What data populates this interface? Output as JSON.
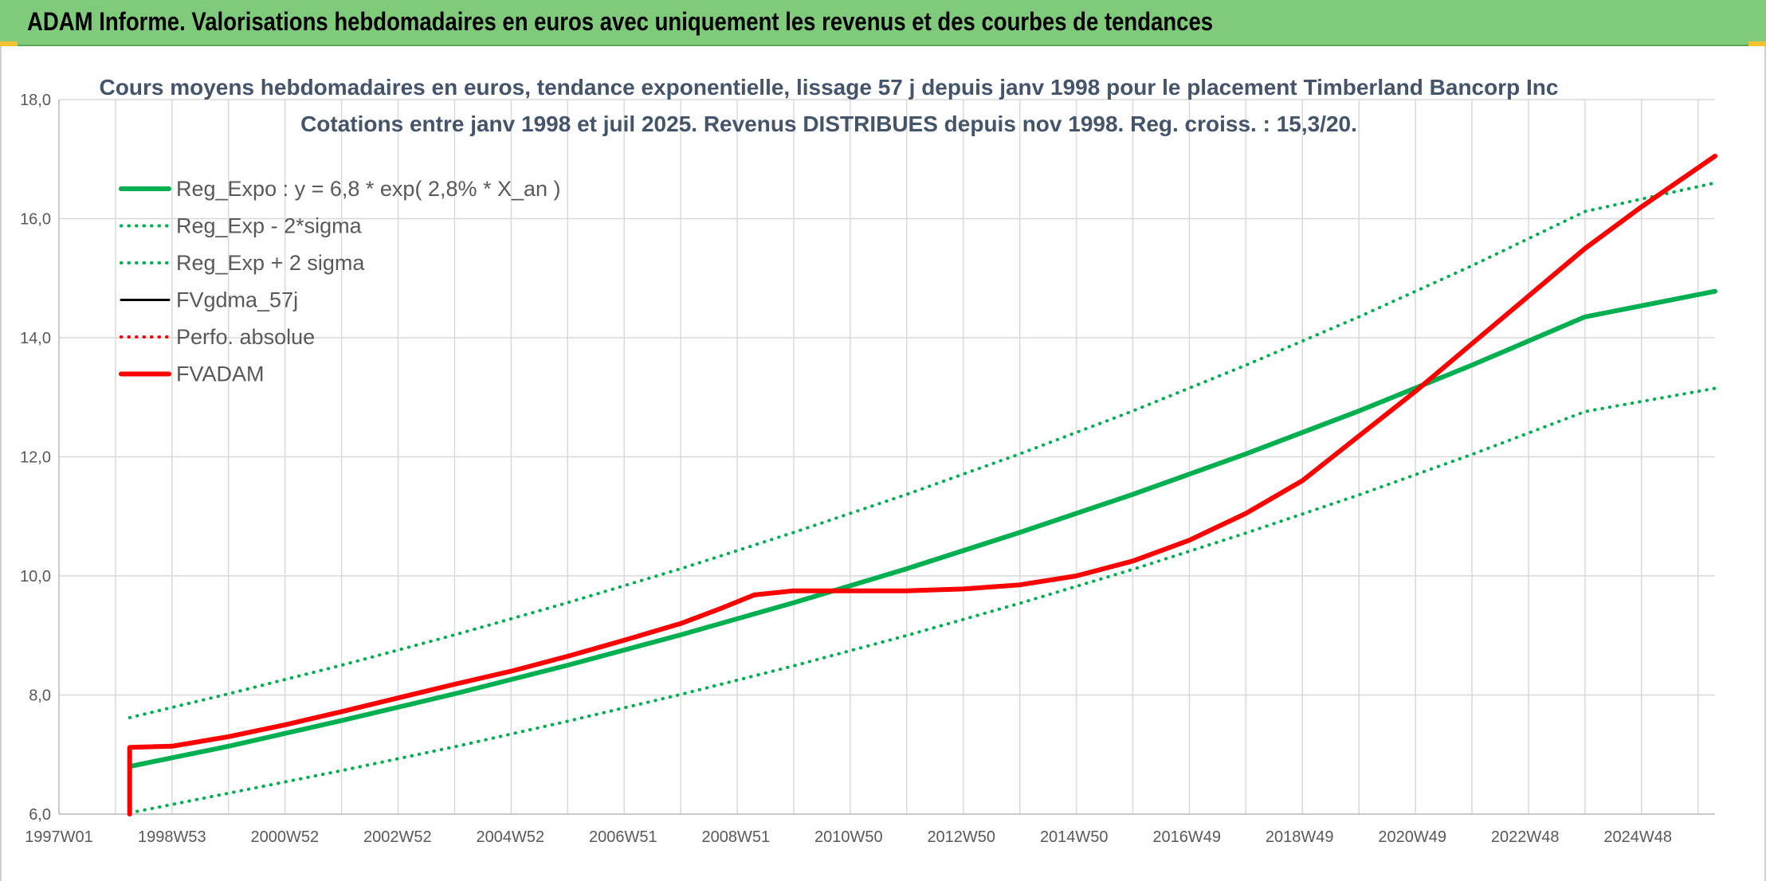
{
  "banner": {
    "title": "ADAM Informe. Valorisations hebdomadaires en euros avec uniquement les revenus et des courbes de tendances"
  },
  "colors": {
    "banner_bg": "#7fca7b",
    "reg_green": "#00b050",
    "fvadam_red": "#ff0000",
    "fvgdma_black": "#000000",
    "grid": "#d9d9d9",
    "title_text": "#44546a"
  },
  "chart_data": {
    "type": "line",
    "title": "Cours moyens hebdomadaires en euros, tendance exponentielle, lissage 57 j depuis janv 1998 pour le placement Timberland Bancorp Inc",
    "subtitle": "Cotations entre janv 1998 et juil 2025. Revenus DISTRIBUES depuis nov 1998. Reg. croiss. : 15,3/20.",
    "xlabel": "",
    "ylabel": "",
    "x_tick_labels": [
      "1997W01",
      "1998W53",
      "2000W52",
      "2002W52",
      "2004W52",
      "2006W51",
      "2008W51",
      "2010W50",
      "2012W50",
      "2014W50",
      "2016W49",
      "2018W49",
      "2020W49",
      "2022W48",
      "2024W48"
    ],
    "xlim": [
      1997.0,
      2026.3
    ],
    "ylim": [
      6.0,
      18.0
    ],
    "y_ticks": [
      "6,0",
      "8,0",
      "10,0",
      "12,0",
      "14,0",
      "16,0",
      "18,0"
    ],
    "grid": true,
    "legend_position": "top-left",
    "series": [
      {
        "name": "Reg_Expo : y = 6,8 * exp( 2,8% *  X_an )",
        "style": "solid-thick",
        "color": "#00b050",
        "x": [
          1998.25,
          2000,
          2002,
          2004,
          2006,
          2008,
          2010,
          2012,
          2014,
          2016,
          2018,
          2020,
          2022,
          2024,
          2026.3
        ],
        "y": [
          6.8,
          7.14,
          7.57,
          8.02,
          8.5,
          9.01,
          9.55,
          10.12,
          10.73,
          11.37,
          12.05,
          12.77,
          13.54,
          14.35,
          14.78
        ]
      },
      {
        "name": "Reg_Exp - 2*sigma",
        "style": "dotted",
        "color": "#00b050",
        "x": [
          1998.25,
          2000,
          2002,
          2004,
          2006,
          2008,
          2010,
          2012,
          2014,
          2016,
          2018,
          2020,
          2022,
          2024,
          2026.3
        ],
        "y": [
          6.02,
          6.35,
          6.73,
          7.13,
          7.56,
          8.01,
          8.49,
          9.0,
          9.54,
          10.11,
          10.72,
          11.36,
          12.04,
          12.76,
          13.15
        ]
      },
      {
        "name": "Reg_Exp + 2 sigma",
        "style": "dotted",
        "color": "#00b050",
        "x": [
          1998.25,
          2000,
          2002,
          2004,
          2006,
          2008,
          2010,
          2012,
          2014,
          2016,
          2018,
          2020,
          2022,
          2024,
          2026.3
        ],
        "y": [
          7.62,
          8.02,
          8.5,
          9.01,
          9.55,
          10.12,
          10.73,
          11.37,
          12.05,
          12.77,
          13.54,
          14.35,
          15.21,
          16.12,
          16.6
        ]
      },
      {
        "name": "FVgdma_57j",
        "style": "solid",
        "color": "#000000",
        "x": [
          1998.25,
          1998.25,
          1999,
          2000,
          2001,
          2002,
          2003,
          2004,
          2005,
          2006,
          2007,
          2008,
          2008.7,
          2009.3,
          2010,
          2011,
          2012,
          2013,
          2014,
          2015,
          2016,
          2017,
          2018,
          2019,
          2020,
          2021,
          2022,
          2023,
          2024,
          2025,
          2026.3
        ],
        "y": [
          6.0,
          7.12,
          7.14,
          7.3,
          7.5,
          7.72,
          7.95,
          8.18,
          8.4,
          8.65,
          8.92,
          9.2,
          9.45,
          9.68,
          9.75,
          9.75,
          9.75,
          9.78,
          9.85,
          10.0,
          10.25,
          10.6,
          11.05,
          11.6,
          12.35,
          13.1,
          13.9,
          14.7,
          15.5,
          16.2,
          17.05
        ]
      },
      {
        "name": "Perfo. absolue",
        "style": "dotted",
        "color": "#ff0000",
        "x": [
          1998.25,
          1998.25,
          1999,
          2000,
          2001,
          2002,
          2003,
          2004,
          2005,
          2006,
          2007,
          2008,
          2008.7,
          2009.3,
          2010,
          2011,
          2012,
          2013,
          2014,
          2015,
          2016,
          2017,
          2018,
          2019,
          2020,
          2021,
          2022,
          2023,
          2024,
          2025,
          2026.3
        ],
        "y": [
          6.0,
          7.12,
          7.14,
          7.3,
          7.5,
          7.72,
          7.95,
          8.18,
          8.4,
          8.65,
          8.92,
          9.2,
          9.45,
          9.68,
          9.75,
          9.75,
          9.75,
          9.78,
          9.85,
          10.0,
          10.25,
          10.6,
          11.05,
          11.6,
          12.35,
          13.1,
          13.9,
          14.7,
          15.5,
          16.2,
          17.05
        ]
      },
      {
        "name": "FVADAM",
        "style": "solid-thick",
        "color": "#ff0000",
        "x": [
          1998.25,
          1998.25,
          1999,
          2000,
          2001,
          2002,
          2003,
          2004,
          2005,
          2006,
          2007,
          2008,
          2008.7,
          2009.3,
          2010,
          2011,
          2012,
          2013,
          2014,
          2015,
          2016,
          2017,
          2018,
          2019,
          2020,
          2021,
          2022,
          2023,
          2024,
          2025,
          2026.3
        ],
        "y": [
          6.0,
          7.12,
          7.14,
          7.3,
          7.5,
          7.72,
          7.95,
          8.18,
          8.4,
          8.65,
          8.92,
          9.2,
          9.45,
          9.68,
          9.75,
          9.75,
          9.75,
          9.78,
          9.85,
          10.0,
          10.25,
          10.6,
          11.05,
          11.6,
          12.35,
          13.1,
          13.9,
          14.7,
          15.5,
          16.2,
          17.05
        ]
      }
    ]
  }
}
